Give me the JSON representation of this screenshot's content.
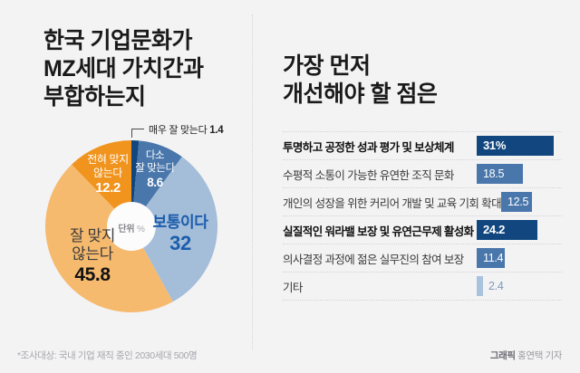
{
  "page": {
    "background": "#f3f3f4"
  },
  "left": {
    "title_lines": [
      "한국 기업문화가",
      "MZ세대 가치간과",
      "부합하는지"
    ],
    "unit_label": "단위",
    "unit_symbol": "%"
  },
  "right": {
    "title_lines": [
      "가장 먼저",
      "개선해야 할 점은"
    ]
  },
  "footer": {
    "note": "*조사대상: 국내 기업 재직 중인 2030세대 500명",
    "credit_bold": "그래픽",
    "credit_rest": " 홍연택 기자"
  },
  "colors": {
    "navy": "#11477e",
    "medium_blue": "#4a77ab",
    "light_blue": "#a4bdd9",
    "light_orange": "#f6ba6e",
    "orange": "#f0941e",
    "neutral_text_blue": "#1c5dac",
    "background": "#f3f3f4"
  },
  "chart_data": [
    {
      "type": "pie",
      "title": "한국 기업문화가 MZ세대 가치간과 부합하는지",
      "unit": "%",
      "donut": true,
      "start_angle_deg": 0,
      "direction": "clockwise",
      "slices": [
        {
          "label": "매우 잘 맞는다",
          "value": 1.4,
          "color": "#11477e"
        },
        {
          "label": "다소 잘 맞는다",
          "label_lines": [
            "다소",
            "잘 맞는다"
          ],
          "value": 8.6,
          "color": "#4a77ab"
        },
        {
          "label": "보통이다",
          "value": 32,
          "color": "#a4bdd9"
        },
        {
          "label": "잘 맞지 않는다",
          "label_lines": [
            "잘 맞지",
            "않는다"
          ],
          "value": 45.8,
          "color": "#f6ba6e"
        },
        {
          "label": "전혀 맞지 않는다",
          "label_lines": [
            "전혀 맞지",
            "않는다"
          ],
          "value": 12.2,
          "color": "#f0941e"
        }
      ]
    },
    {
      "type": "bar",
      "title": "가장 먼저 개선해야 할 점은",
      "orientation": "horizontal",
      "unit": "%",
      "xlim": [
        0,
        34
      ],
      "items": [
        {
          "label": "투명하고 공정한 성과 평가 및 보상체계",
          "value": 31,
          "value_text": "31%",
          "color": "#11477e",
          "emphasis": true,
          "value_outside": false
        },
        {
          "label": "수평적 소통이 가능한 유연한 조직 문화",
          "value": 18.5,
          "value_text": "18.5",
          "color": "#4a77ab",
          "emphasis": false,
          "value_outside": false
        },
        {
          "label": "개인의 성장을 위한 커리어 개발 및 교육 기회 확대",
          "value": 12.5,
          "value_text": "12.5",
          "color": "#4a77ab",
          "emphasis": false,
          "value_outside": false
        },
        {
          "label": "실질적인 워라밸 보장 및 유연근무제 활성화",
          "value": 24.2,
          "value_text": "24.2",
          "color": "#11477e",
          "emphasis": true,
          "value_outside": false
        },
        {
          "label": "의사결정 과정에 젊은 실무진의 참여 보장",
          "value": 11.4,
          "value_text": "11.4",
          "color": "#4a77ab",
          "emphasis": false,
          "value_outside": false
        },
        {
          "label": "기타",
          "value": 2.4,
          "value_text": "2.4",
          "color": "#a9c3de",
          "emphasis": false,
          "value_outside": true
        }
      ]
    }
  ]
}
